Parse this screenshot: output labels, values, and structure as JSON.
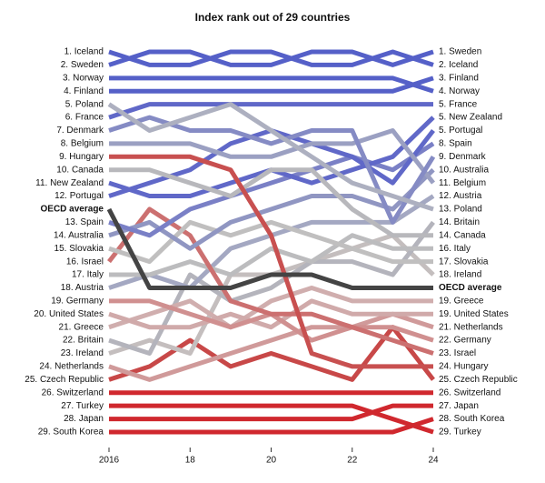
{
  "chart_data": {
    "type": "bump",
    "title": "Index rank out of 29 countries",
    "x": [
      2016,
      2017,
      2018,
      2019,
      2020,
      2021,
      2022,
      2023,
      2024
    ],
    "xlim": [
      2016,
      2024
    ],
    "xticks": [
      2016,
      {
        "value": 2018,
        "label": "18"
      },
      {
        "value": 2020,
        "label": "20"
      },
      {
        "value": 2022,
        "label": "22"
      },
      {
        "value": 2024,
        "label": "24"
      }
    ],
    "ylim": [
      1,
      30
    ],
    "series": [
      {
        "left_label": "1. Iceland",
        "right_label": "2. Iceland",
        "color": "#5560c8",
        "values": [
          1,
          2,
          2,
          1,
          1,
          2,
          2,
          1,
          2
        ]
      },
      {
        "left_label": "2. Sweden",
        "right_label": "1. Sweden",
        "color": "#5560c8",
        "values": [
          2,
          1,
          1,
          2,
          2,
          1,
          1,
          2,
          1
        ]
      },
      {
        "left_label": "3. Norway",
        "right_label": "4. Norway",
        "color": "#5560c8",
        "values": [
          3,
          3,
          3,
          3,
          3,
          3,
          3,
          3,
          4
        ]
      },
      {
        "left_label": "4. Finland",
        "right_label": "3. Finland",
        "color": "#5560c8",
        "values": [
          4,
          4,
          4,
          4,
          4,
          4,
          4,
          4,
          3
        ]
      },
      {
        "left_label": "5. Poland",
        "right_label": "13. Poland",
        "color": "#adb0c0",
        "values": [
          5,
          7,
          6,
          5,
          7,
          9,
          11,
          12,
          13
        ]
      },
      {
        "left_label": "6. France",
        "right_label": "5. France",
        "color": "#6068c8",
        "values": [
          6,
          5,
          5,
          5,
          5,
          5,
          5,
          5,
          5
        ]
      },
      {
        "left_label": "7. Denmark",
        "right_label": "9. Denmark",
        "color": "#858bc4",
        "values": [
          7,
          6,
          7,
          7,
          8,
          7,
          7,
          14,
          9
        ]
      },
      {
        "left_label": "8. Belgium",
        "right_label": "11. Belgium",
        "color": "#9ba0c2",
        "values": [
          8,
          8,
          8,
          9,
          9,
          8,
          8,
          7,
          11
        ]
      },
      {
        "left_label": "9. Hungary",
        "right_label": "24. Hungary",
        "color": "#c85050",
        "values": [
          9,
          9,
          9,
          10,
          15,
          24,
          25,
          25,
          25
        ]
      },
      {
        "left_label": "10. Canada",
        "right_label": "14. Canada",
        "color": "#b8b8bc",
        "values": [
          10,
          10,
          11,
          12,
          10,
          10,
          13,
          15,
          15
        ]
      },
      {
        "left_label": "11. New Zealand",
        "right_label": "5. New Zealand",
        "color": "#6068c8",
        "values": [
          11,
          12,
          12,
          11,
          10,
          11,
          10,
          9,
          6
        ]
      },
      {
        "left_label": "12. Portugal",
        "right_label": "5. Portugal",
        "color": "#6068c8",
        "values": [
          12,
          11,
          10,
          8,
          7,
          8,
          9,
          11,
          7
        ]
      },
      {
        "left_label": "OECD average",
        "right_label": "OECD average",
        "color": "#444444",
        "bold": true,
        "values": [
          13,
          19,
          19,
          19,
          18,
          18,
          19,
          19,
          19
        ]
      },
      {
        "left_label": "13. Spain",
        "right_label": "8. Spain",
        "color": "#7a80c6",
        "values": [
          14,
          15,
          13,
          12,
          11,
          10,
          9,
          10,
          8
        ]
      },
      {
        "left_label": "14. Australia",
        "right_label": "10. Australia",
        "color": "#9096c2",
        "values": [
          15,
          14,
          16,
          14,
          13,
          12,
          12,
          13,
          10
        ]
      },
      {
        "left_label": "15. Slovakia",
        "right_label": "17. Slovakia",
        "color": "#c0bfbf",
        "values": [
          16,
          17,
          14,
          15,
          14,
          15,
          16,
          17,
          17
        ]
      },
      {
        "left_label": "16. Israel",
        "right_label": "23. Israel",
        "color": "#cc7070",
        "values": [
          17,
          13,
          15,
          20,
          21,
          21,
          22,
          23,
          24
        ]
      },
      {
        "left_label": "17. Italy",
        "right_label": "16. Italy",
        "color": "#bcbcbe",
        "values": [
          18,
          18,
          17,
          18,
          16,
          17,
          15,
          16,
          16
        ]
      },
      {
        "left_label": "18. Austria",
        "right_label": "12. Austria",
        "color": "#a4a8c2",
        "values": [
          19,
          18,
          19,
          16,
          15,
          14,
          14,
          14,
          12
        ]
      },
      {
        "left_label": "19. Germany",
        "right_label": "22. Germany",
        "color": "#d09090",
        "values": [
          20,
          20,
          21,
          22,
          21,
          23,
          22,
          22,
          23
        ]
      },
      {
        "left_label": "20. United States",
        "right_label": "19. United States",
        "color": "#d0aaaa",
        "values": [
          21,
          22,
          22,
          21,
          22,
          20,
          21,
          21,
          21
        ]
      },
      {
        "left_label": "21. Greece",
        "right_label": "19. Greece",
        "color": "#d0aeae",
        "values": [
          22,
          21,
          20,
          22,
          20,
          19,
          20,
          20,
          20
        ]
      },
      {
        "left_label": "22. Britain",
        "right_label": "14. Britain",
        "color": "#b4b4bc",
        "values": [
          23,
          24,
          18,
          20,
          19,
          17,
          17,
          18,
          14
        ]
      },
      {
        "left_label": "23. Ireland",
        "right_label": "18. Ireland",
        "color": "#c4bebe",
        "values": [
          24,
          23,
          24,
          18,
          18,
          17,
          16,
          15,
          18
        ]
      },
      {
        "left_label": "24. Netherlands",
        "right_label": "21. Netherlands",
        "color": "#d09a9a",
        "values": [
          25,
          26,
          25,
          24,
          23,
          22,
          22,
          21,
          22
        ]
      },
      {
        "left_label": "25. Czech Republic",
        "right_label": "25. Czech Republic",
        "color": "#c84848",
        "values": [
          26,
          25,
          23,
          25,
          24,
          25,
          26,
          22,
          26
        ]
      },
      {
        "left_label": "26. Switzerland",
        "right_label": "26. Switzerland",
        "color": "#d0282e",
        "values": [
          27,
          27,
          27,
          27,
          27,
          27,
          27,
          27,
          27
        ]
      },
      {
        "left_label": "27. Turkey",
        "right_label": "29. Turkey",
        "color": "#d0282e",
        "values": [
          28,
          28,
          28,
          28,
          28,
          28,
          28,
          29,
          30
        ]
      },
      {
        "left_label": "28. Japan",
        "right_label": "27. Japan",
        "color": "#d0282e",
        "values": [
          29,
          29,
          29,
          29,
          29,
          29,
          29,
          28,
          28
        ]
      },
      {
        "left_label": "29. South Korea",
        "right_label": "28. South Korea",
        "color": "#d0282e",
        "values": [
          30,
          30,
          30,
          30,
          30,
          30,
          30,
          30,
          29
        ]
      }
    ]
  }
}
